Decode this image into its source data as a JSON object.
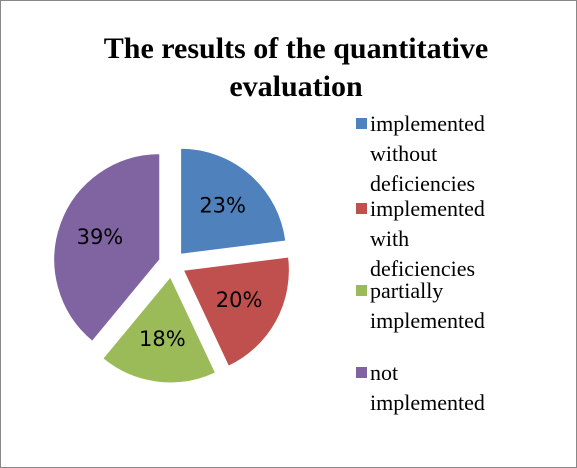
{
  "chart_data": {
    "type": "pie",
    "title": "The results of the quantitative evaluation",
    "categories": [
      "implemented without deficiencies",
      "implemented with deficiencies",
      "partially implemented",
      "not implemented"
    ],
    "values": [
      23,
      20,
      18,
      39
    ],
    "value_labels": [
      "23%",
      "20%",
      "18%",
      "39%"
    ],
    "colors": [
      "#4f81bd",
      "#c0504d",
      "#9bbb59",
      "#8064a2"
    ],
    "legend": "right"
  }
}
